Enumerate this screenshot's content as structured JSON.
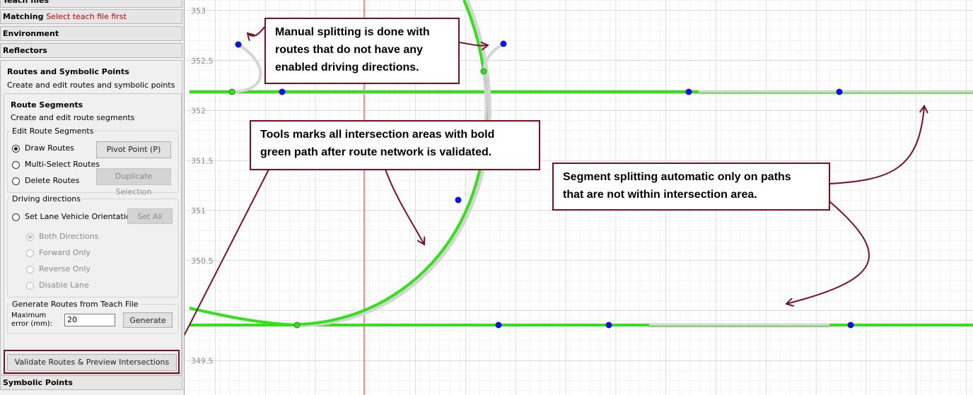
{
  "sidebar": {
    "teach_files": "Teach files",
    "matching": "Matching",
    "matching_status": "Select teach file first",
    "environment": "Environment",
    "reflectors": "Reflectors",
    "routes_panel": {
      "title": "Routes and Symbolic Points",
      "subtitle": "Create and edit routes and symbolic points",
      "segments_title": "Route Segments",
      "segments_subtitle": "Create and edit route segments",
      "edit_group": "Edit Route Segments",
      "draw_routes": "Draw Routes",
      "pivot_point": "Pivot Point (P)",
      "multi_select": "Multi-Select Routes",
      "duplicate": "Duplicate Selection",
      "delete_routes": "Delete Routes",
      "driving_group": "Driving directions",
      "set_orientation": "Set Lane Vehicle Orientation",
      "set_all": "Set All",
      "both": "Both Directions",
      "forward": "Forward Only",
      "reverse": "Reverse Only",
      "disable": "Disable Lane",
      "generate_group": "Generate Routes from Teach File",
      "max_error_label": "Maximum error (mm):",
      "max_error_value": 20,
      "generate": "Generate",
      "validate": "Validate Routes & Preview Intersections"
    },
    "symbolic_points": "Symbolic Points"
  },
  "canvas": {
    "y_ticks": [
      353,
      352.5,
      352,
      351.5,
      351,
      350.5,
      349.5
    ]
  },
  "annotations": [
    [
      "Manual splitting is done with",
      "routes that do not have any",
      "enabled driving directions."
    ],
    [
      "Tools marks all intersection areas with bold",
      "green path after route network is validated."
    ],
    [
      "Segment splitting automatic only on paths",
      "that are not within intersection area."
    ]
  ]
}
